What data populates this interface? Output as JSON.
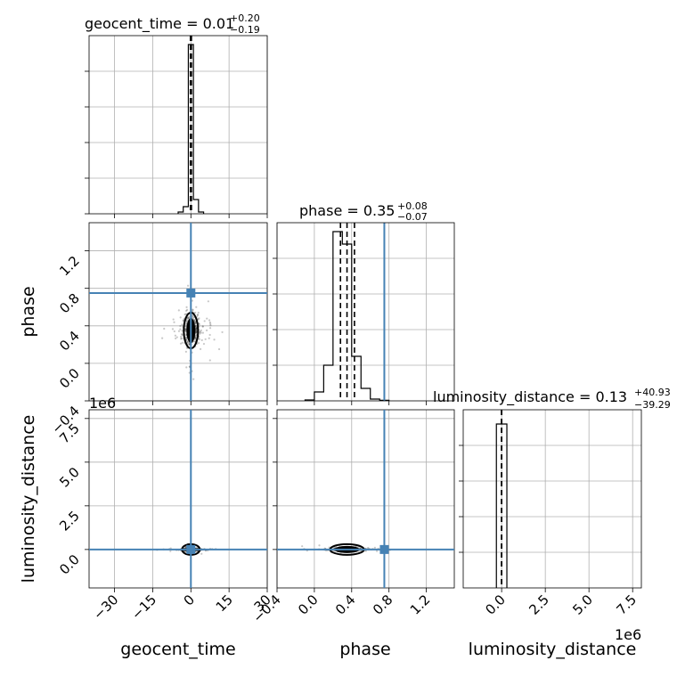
{
  "chart_data": {
    "type": "corner",
    "parameters": [
      {
        "name": "geocent_time",
        "title_main": "geocent_time = 0.01",
        "title_plus": "+0.20",
        "title_minus": "−0.19",
        "median": 0.01,
        "err_plus": 0.2,
        "err_minus": 0.19,
        "range": [
          -40,
          30
        ],
        "ticks": [
          -30,
          -15,
          0,
          15,
          30
        ],
        "tick_labels": [
          "−30",
          "−15",
          "0",
          "15",
          "30"
        ],
        "truth": 0,
        "hist": {
          "edges": [
            -5,
            -3,
            -1,
            0,
            1,
            3,
            5
          ],
          "counts": [
            0.01,
            0.04,
            0.95,
            0.95,
            0.08,
            0.01
          ]
        },
        "quantiles": [
          -0.18,
          0.01,
          0.21
        ]
      },
      {
        "name": "phase",
        "title_main": "phase = 0.35",
        "title_plus": "+0.08",
        "title_minus": "−0.07",
        "median": 0.35,
        "err_plus": 0.08,
        "err_minus": 0.07,
        "range": [
          -0.4,
          1.5
        ],
        "ticks": [
          -0.4,
          0.0,
          0.4,
          0.8,
          1.2
        ],
        "tick_labels": [
          "−0.4",
          "0.0",
          "0.4",
          "0.8",
          "1.2"
        ],
        "truth": 0.75,
        "hist": {
          "edges": [
            -0.1,
            0.0,
            0.1,
            0.2,
            0.3,
            0.4,
            0.5,
            0.6,
            0.7,
            0.8
          ],
          "counts": [
            0.005,
            0.05,
            0.2,
            0.95,
            0.88,
            0.25,
            0.07,
            0.01,
            0.003
          ]
        },
        "quantiles": [
          0.28,
          0.35,
          0.43
        ]
      },
      {
        "name": "luminosity_distance",
        "title_main": "luminosity_distance = 0.13",
        "title_plus": "+40.93",
        "title_minus": "−39.29",
        "median": 0.13,
        "err_plus": 40.93,
        "err_minus": 39.29,
        "range": [
          -2200000,
          8000000
        ],
        "ticks": [
          0,
          2500000,
          5000000,
          7500000
        ],
        "tick_labels": [
          "0.0",
          "2.5",
          "5.0",
          "7.5"
        ],
        "offset_text": "1e6",
        "truth": 0,
        "hist": {
          "edges": [
            -300000,
            0,
            300000
          ],
          "counts": [
            0.92,
            0.92
          ]
        },
        "quantiles": [
          -39.16,
          0.13,
          41.06
        ]
      }
    ],
    "axis_labels": {
      "x": [
        "geocent_time",
        "phase",
        "luminosity_distance"
      ],
      "y": [
        "phase",
        "luminosity_distance"
      ]
    },
    "truth_color": "#4682b4",
    "grid": true
  }
}
